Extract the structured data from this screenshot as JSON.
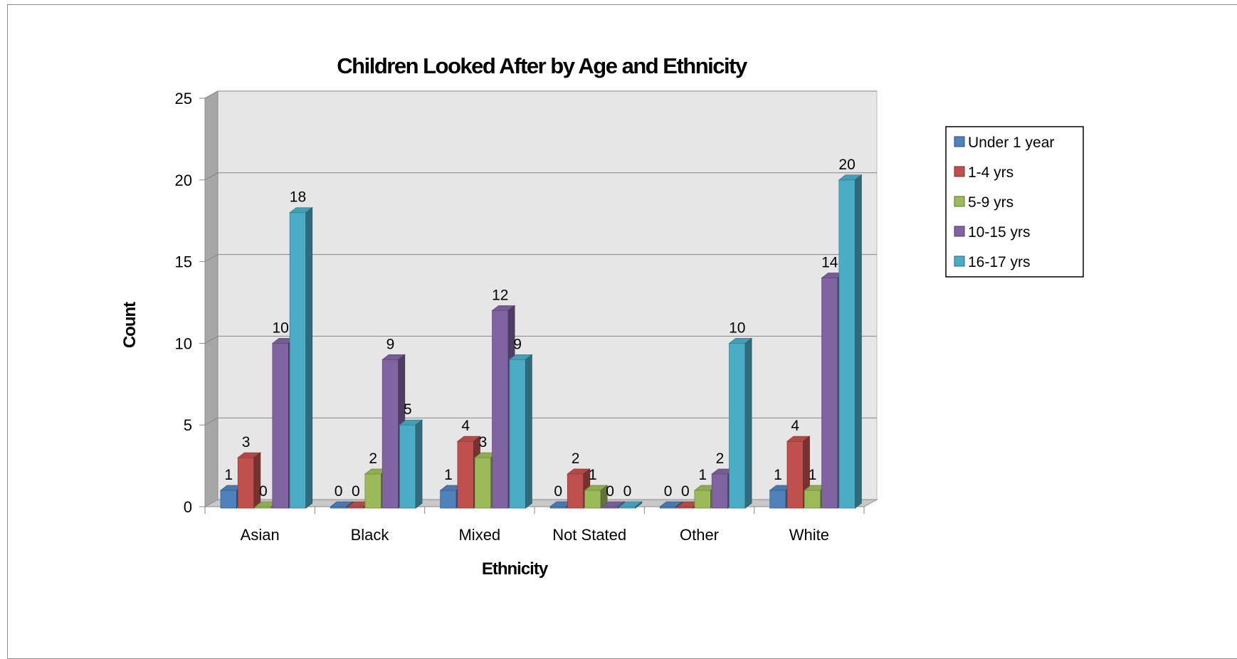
{
  "chart_data": {
    "type": "bar",
    "title": "Children Looked After by Age and Ethnicity",
    "xlabel": "Ethnicity",
    "ylabel": "Count",
    "ylim": [
      0,
      25
    ],
    "yticks": [
      0,
      5,
      10,
      15,
      20,
      25
    ],
    "grid": true,
    "legend_position": "right",
    "categories": [
      "Asian",
      "Black",
      "Mixed",
      "Not Stated",
      "Other",
      "White"
    ],
    "series": [
      {
        "name": "Under 1 year",
        "values": [
          1,
          0,
          1,
          0,
          0,
          1
        ],
        "color": "#4f81bd"
      },
      {
        "name": "1-4 yrs",
        "values": [
          3,
          0,
          4,
          2,
          0,
          4
        ],
        "color": "#c0504d"
      },
      {
        "name": "5-9 yrs",
        "values": [
          0,
          2,
          3,
          1,
          1,
          1
        ],
        "color": "#9bbb59"
      },
      {
        "name": "10-15 yrs",
        "values": [
          10,
          9,
          12,
          0,
          2,
          14
        ],
        "color": "#8064a2"
      },
      {
        "name": "16-17 yrs",
        "values": [
          18,
          5,
          9,
          0,
          10,
          20
        ],
        "color": "#4bacc6"
      }
    ]
  }
}
